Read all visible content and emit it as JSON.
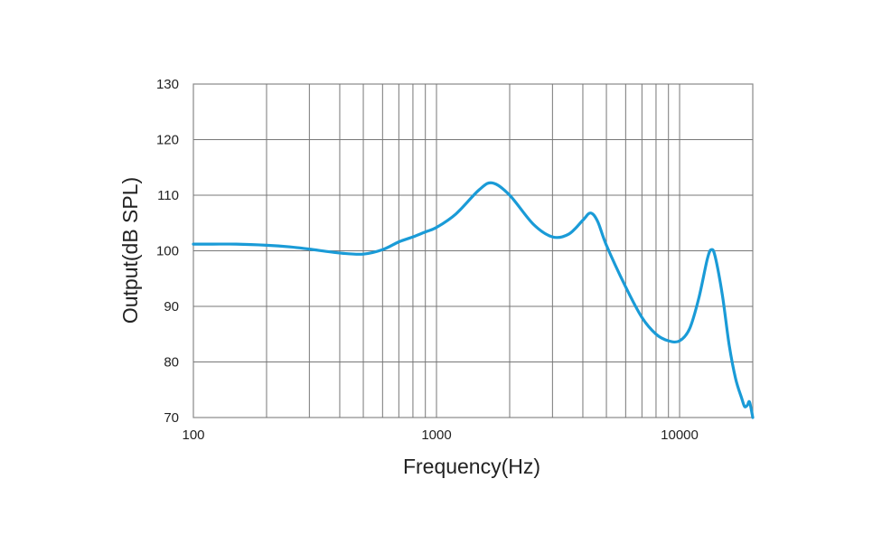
{
  "chart_data": {
    "type": "line",
    "title": "",
    "xlabel": "Frequency(Hz)",
    "ylabel": "Output(dB SPL)",
    "x_scale": "log",
    "xlim": [
      100,
      20000
    ],
    "ylim": [
      70,
      130
    ],
    "grid": true,
    "x_tick_labels": [
      "100",
      "1000",
      "10000"
    ],
    "y_tick_labels": [
      "70",
      "80",
      "90",
      "100",
      "110",
      "120",
      "130"
    ],
    "series": [
      {
        "points": [
          [
            100,
            101.2
          ],
          [
            120,
            101.2
          ],
          [
            150,
            101.2
          ],
          [
            200,
            101.0
          ],
          [
            250,
            100.7
          ],
          [
            300,
            100.3
          ],
          [
            400,
            99.6
          ],
          [
            500,
            99.4
          ],
          [
            600,
            100.2
          ],
          [
            700,
            101.6
          ],
          [
            800,
            102.5
          ],
          [
            900,
            103.4
          ],
          [
            1000,
            104.2
          ],
          [
            1200,
            106.6
          ],
          [
            1500,
            111.0
          ],
          [
            1700,
            112.2
          ],
          [
            2000,
            110.0
          ],
          [
            2500,
            104.8
          ],
          [
            3000,
            102.5
          ],
          [
            3500,
            103.0
          ],
          [
            4000,
            105.5
          ],
          [
            4300,
            106.8
          ],
          [
            4600,
            105.3
          ],
          [
            5000,
            101.0
          ],
          [
            6000,
            93.5
          ],
          [
            7000,
            88.0
          ],
          [
            8000,
            85.0
          ],
          [
            9000,
            83.8
          ],
          [
            10000,
            83.8
          ],
          [
            11000,
            86.0
          ],
          [
            12000,
            91.5
          ],
          [
            13000,
            98.5
          ],
          [
            13500,
            100.2
          ],
          [
            14000,
            99.0
          ],
          [
            15000,
            92.0
          ],
          [
            16000,
            83.0
          ],
          [
            17000,
            77.0
          ],
          [
            18000,
            73.5
          ],
          [
            18500,
            72.0
          ],
          [
            19000,
            72.2
          ],
          [
            19400,
            72.8
          ],
          [
            20000,
            70.0
          ]
        ]
      }
    ]
  },
  "colors": {
    "line": "#1a9bd7",
    "grid": "#777777",
    "frame": "#888888",
    "text": "#222222"
  }
}
